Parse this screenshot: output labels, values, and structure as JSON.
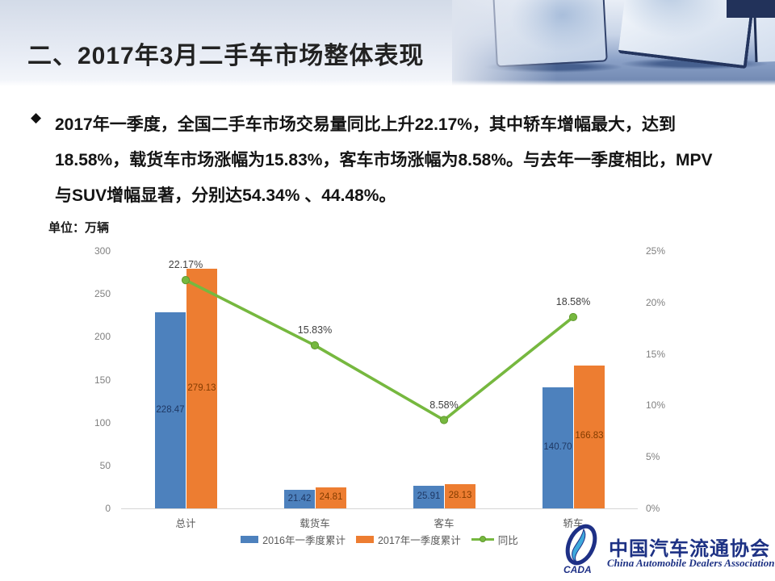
{
  "slide": {
    "title": "二、2017年3月二手车市场整体表现",
    "bullet_marker": "◆",
    "paragraph_lines": [
      "2017年一季度，全国二手车市场交易量同比上升22.17%，其中轿车增幅最大，达到",
      "18.58%，载货车市场涨幅为15.83%，客车市场涨幅为8.58%。与去年一季度相比，MPV",
      "与SUV增幅显著，分别达54.34% 、44.48%。"
    ]
  },
  "chart_data": {
    "type": "bar",
    "subtype": "grouped bars with overlaid line (secondary % axis)",
    "unit_label": "单位：万辆",
    "categories": [
      "总计",
      "载货车",
      "客车",
      "轿车"
    ],
    "series": [
      {
        "name": "2016年一季度累计",
        "kind": "bar",
        "color": "#4D81BD",
        "label_color": "#1F3864",
        "values": [
          228.47,
          21.42,
          25.91,
          140.7
        ],
        "value_labels": [
          "228.47",
          "21.42",
          "25.91",
          "140.70"
        ]
      },
      {
        "name": "2017年一季度累计",
        "kind": "bar",
        "color": "#ED7D31",
        "label_color": "#833C00",
        "values": [
          279.13,
          24.81,
          28.13,
          166.83
        ],
        "value_labels": [
          "279.13",
          "24.81",
          "28.13",
          "166.83"
        ]
      },
      {
        "name": "同比",
        "kind": "line",
        "color": "#76B83F",
        "marker_edge": "#619A2E",
        "axis": "right",
        "values": [
          22.17,
          15.83,
          8.58,
          18.58
        ],
        "value_labels": [
          "22.17%",
          "15.83%",
          "8.58%",
          "18.58%"
        ]
      }
    ],
    "left_axis": {
      "min": 0,
      "max": 300,
      "ticks": [
        "300",
        "250",
        "200",
        "150",
        "100",
        "50",
        "0"
      ]
    },
    "right_axis": {
      "min": 0,
      "max": 25,
      "ticks": [
        "25%",
        "20%",
        "15%",
        "10%",
        "5%",
        "0%"
      ]
    },
    "grid": false,
    "legend_position": "bottom-center"
  },
  "logo": {
    "emblem_text": "CADA",
    "name_cn": "中国汽车流通协会",
    "name_en": "China Automobile Dealers Association"
  }
}
